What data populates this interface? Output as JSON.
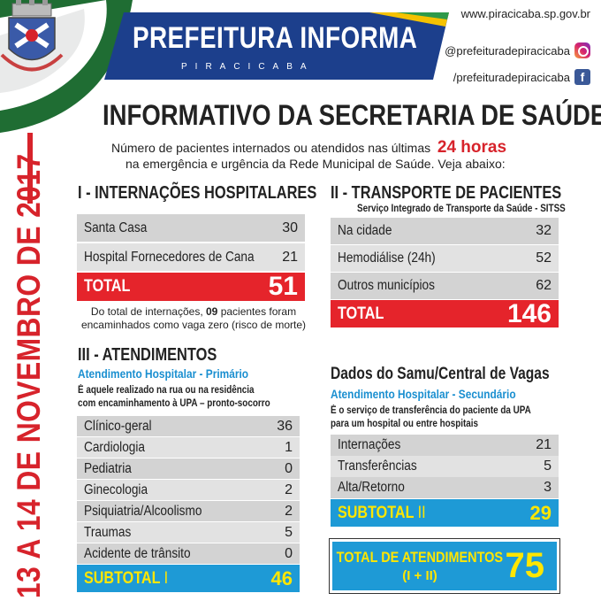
{
  "header": {
    "title": "PREFEITURA INFORMA",
    "subtitle": "PIRACICABA",
    "website": "www.piracicaba.sp.gov.br",
    "instagram": "@prefeituradepiracicaba",
    "facebook": "/prefeituradepiracicaba",
    "instagram_icon": "instagram-icon",
    "facebook_icon": "facebook-icon"
  },
  "side_date": "13 A 14 DE NOVEMBRO DE 2017",
  "main": {
    "title": "INFORMATIVO DA SECRETARIA DE SAÚDE",
    "intro_line1": "Número de pacientes internados ou atendidos nas últimas",
    "intro_highlight": "24 horas",
    "intro_line2": "na emergência e urgência da Rede Municipal de Saúde. Veja abaixo:"
  },
  "internacoes": {
    "title": "I - INTERNAÇÕES HOSPITALARES",
    "rows": [
      {
        "label": "Santa Casa",
        "value": "30"
      },
      {
        "label": "Hospital Fornecedores de Cana",
        "value": "21"
      }
    ],
    "total_label": "TOTAL",
    "total_value": "51",
    "note_part1": "Do total de internações, ",
    "note_bold": "09",
    "note_part2": " pacientes foram",
    "note_line2": "encaminhados como vaga zero (risco de morte)"
  },
  "transporte": {
    "title": "II - TRANSPORTE DE PACIENTES",
    "subtitle": "Serviço Integrado de Transporte da Saúde - SITSS",
    "rows": [
      {
        "label": "Na cidade",
        "value": "32"
      },
      {
        "label": "Hemodiálise (24h)",
        "value": "52"
      },
      {
        "label": "Outros municípios",
        "value": "62"
      }
    ],
    "total_label": "TOTAL",
    "total_value": "146"
  },
  "atendimentos": {
    "title": "III - ATENDIMENTOS",
    "subtitle": "Atendimento Hospitalar - Primário",
    "desc_line1": "É aquele realizado na rua ou na residência",
    "desc_line2": "com encaminhamento à UPA – pronto-socorro",
    "rows": [
      {
        "label": "Clínico-geral",
        "value": "36"
      },
      {
        "label": "Cardiologia",
        "value": "1"
      },
      {
        "label": "Pediatria",
        "value": "0"
      },
      {
        "label": "Ginecologia",
        "value": "2"
      },
      {
        "label": "Psiquiatria/Alcoolismo",
        "value": "2"
      },
      {
        "label": "Traumas",
        "value": "5"
      },
      {
        "label": "Acidente de trânsito",
        "value": "0"
      }
    ],
    "subtotal_label": "SUBTOTAL",
    "subtotal_numeral": "I",
    "subtotal_value": "46"
  },
  "samu": {
    "title": "Dados do Samu/Central de Vagas",
    "subtitle": "Atendimento Hospitalar - Secundário",
    "desc_line1": "É o serviço de transferência do paciente da UPA",
    "desc_line2": "para um hospital ou entre hospitais",
    "rows": [
      {
        "label": "Internações",
        "value": "21"
      },
      {
        "label": "Transferências",
        "value": "5"
      },
      {
        "label": "Alta/Retorno",
        "value": "3"
      }
    ],
    "subtotal_label": "SUBTOTAL",
    "subtotal_numeral": "II",
    "subtotal_value": "29"
  },
  "grand_total": {
    "label": "TOTAL DE ATENDIMENTOS",
    "formula": "(I + II)",
    "value": "75"
  },
  "colors": {
    "red": "#e5242b",
    "blue": "#1e9ad6",
    "navy": "#1c3f8c",
    "green": "#1f6d33",
    "yellow": "#ffe600"
  }
}
